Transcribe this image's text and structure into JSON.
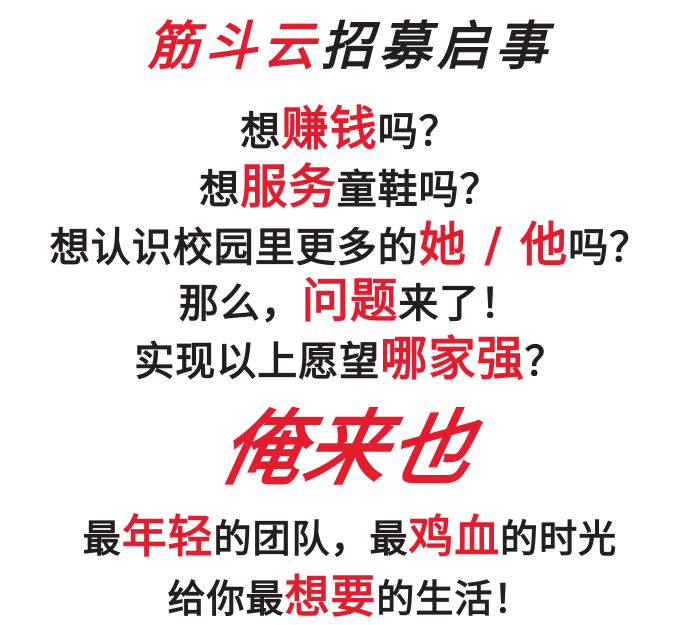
{
  "title": {
    "red": "筋斗云",
    "black": "招募启事"
  },
  "lines": [
    {
      "a": "想",
      "b": "赚钱",
      "c": "吗？"
    },
    {
      "a": "想",
      "b": "服务",
      "c": "童鞋吗？"
    },
    {
      "a": "想认识校园里更多的",
      "b": "她 / 他",
      "c": "吗？"
    },
    {
      "a": "那么，",
      "b": "问题",
      "c": "来了！"
    },
    {
      "a": "实现以上愿望",
      "b": "哪家强",
      "c": "？"
    }
  ],
  "slogan": "俺来也",
  "closing1": {
    "a": "最",
    "b": "年轻",
    "c": "的团队，最",
    "d": "鸡血",
    "e": "的时光"
  },
  "closing2": {
    "a": "给你最",
    "b": "想要",
    "c": "的生活！"
  },
  "colors": {
    "accent": "#e31d2d",
    "text": "#231f20"
  }
}
